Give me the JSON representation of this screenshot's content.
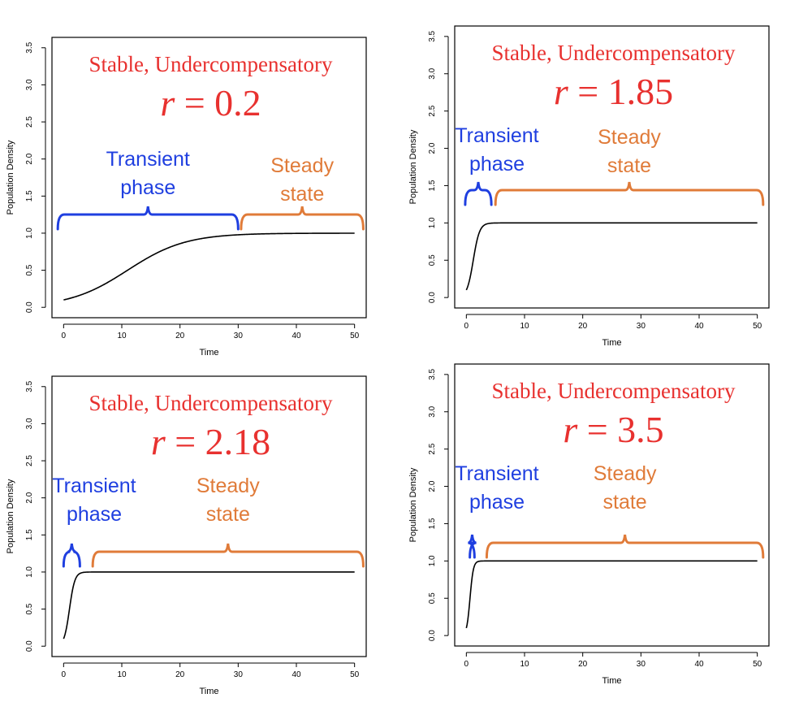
{
  "chart_data": [
    {
      "type": "line",
      "title": "Stable, Undercompensatory",
      "r_label": "r = 0.2",
      "r_var": "r",
      "r_value": "0.2",
      "xlabel": "Time",
      "ylabel": "Population Density",
      "xlim": [
        0,
        50
      ],
      "ylim": [
        0,
        3.5
      ],
      "x_ticks": [
        "0",
        "10",
        "20",
        "30",
        "40",
        "50"
      ],
      "y_ticks": [
        "0.0",
        "0.5",
        "1.0",
        "1.5",
        "2.0",
        "2.5",
        "3.0",
        "3.5"
      ],
      "series": [
        {
          "r": 0.2,
          "n0": 0.1,
          "t_start": 0,
          "t_end": 50,
          "color": "#000000"
        }
      ],
      "annotations": [
        {
          "text_lines": [
            "Transient",
            "phase"
          ],
          "color": "#1f3fe0",
          "x_from": -1,
          "x_to": 30
        },
        {
          "text_lines": [
            "Steady",
            "state"
          ],
          "color": "#e07b39",
          "x_from": 30.5,
          "x_to": 51.5
        }
      ]
    },
    {
      "type": "line",
      "title": "Stable, Undercompensatory",
      "r_label": "r = 1.85",
      "r_var": "r",
      "r_value": "1.85",
      "xlabel": "Time",
      "ylabel": "Population Density",
      "xlim": [
        0,
        50
      ],
      "ylim": [
        0,
        3.5
      ],
      "x_ticks": [
        "0",
        "10",
        "20",
        "30",
        "40",
        "50"
      ],
      "y_ticks": [
        "0.0",
        "0.5",
        "1.0",
        "1.5",
        "2.0",
        "2.5",
        "3.0",
        "3.5"
      ],
      "series": [
        {
          "r": 1.85,
          "n0": 0.1,
          "t_start": 0,
          "t_end": 50,
          "color": "#000000"
        }
      ],
      "annotations": [
        {
          "text_lines": [
            "Transient",
            "phase"
          ],
          "color": "#1f3fe0",
          "x_from": -0.2,
          "x_to": 4.3
        },
        {
          "text_lines": [
            "Steady",
            "state"
          ],
          "color": "#e07b39",
          "x_from": 5,
          "x_to": 51
        }
      ]
    },
    {
      "type": "line",
      "title": "Stable, Undercompensatory",
      "r_label": "r = 2.18",
      "r_var": "r",
      "r_value": "2.18",
      "xlabel": "Time",
      "ylabel": "Population Density",
      "xlim": [
        0,
        50
      ],
      "ylim": [
        0,
        3.5
      ],
      "x_ticks": [
        "0",
        "10",
        "20",
        "30",
        "40",
        "50"
      ],
      "y_ticks": [
        "0.0",
        "0.5",
        "1.0",
        "1.5",
        "2.0",
        "2.5",
        "3.0",
        "3.5"
      ],
      "series": [
        {
          "r": 2.18,
          "n0": 0.1,
          "t_start": 0,
          "t_end": 50,
          "color": "#000000"
        }
      ],
      "annotations": [
        {
          "text_lines": [
            "Transient",
            "phase"
          ],
          "color": "#1f3fe0",
          "x_from": 0,
          "x_to": 2.8
        },
        {
          "text_lines": [
            "Steady",
            "state"
          ],
          "color": "#e07b39",
          "x_from": 5,
          "x_to": 51.5
        }
      ]
    },
    {
      "type": "line",
      "title": "Stable, Undercompensatory",
      "r_label": "r = 3.5",
      "r_var": "r",
      "r_value": "3.5",
      "xlabel": "Time",
      "ylabel": "Population Density",
      "xlim": [
        0,
        50
      ],
      "ylim": [
        0,
        3.5
      ],
      "x_ticks": [
        "0",
        "10",
        "20",
        "30",
        "40",
        "50"
      ],
      "y_ticks": [
        "0.0",
        "0.5",
        "1.0",
        "1.5",
        "2.0",
        "2.5",
        "3.0",
        "3.5"
      ],
      "series": [
        {
          "r": 3.5,
          "n0": 0.1,
          "t_start": 0,
          "t_end": 50,
          "color": "#000000"
        }
      ],
      "annotations": [
        {
          "text_lines": [
            "Transient",
            "phase"
          ],
          "color": "#1f3fe0",
          "x_from": 0.6,
          "x_to": 1.4
        },
        {
          "text_lines": [
            "Steady",
            "state"
          ],
          "color": "#e07b39",
          "x_from": 3.5,
          "x_to": 51
        }
      ]
    }
  ]
}
